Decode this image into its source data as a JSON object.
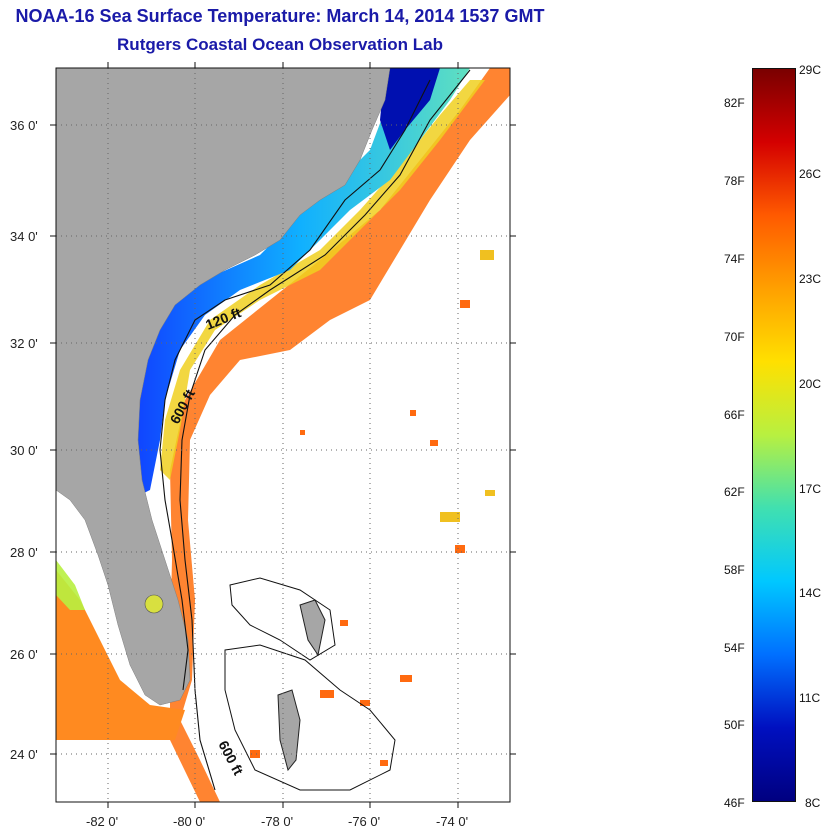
{
  "title": "NOAA-16 Sea Surface Temperature:  March 14, 2014 1537 GMT",
  "subtitle": "Rutgers Coastal Ocean Observation Lab",
  "map": {
    "lat_ticks": [
      "36 0'",
      "34 0'",
      "32 0'",
      "30 0'",
      "28 0'",
      "26 0'",
      "24 0'"
    ],
    "lon_ticks": [
      "-82 0'",
      "-80 0'",
      "-78 0'",
      "-76 0'",
      "-74 0'"
    ],
    "contour_labels": [
      "120 ft",
      "600 ft",
      "600 ft"
    ],
    "colors": {
      "land": "#a6a6a6",
      "ocean_nodata": "#ffffff",
      "grid": "#666666"
    }
  },
  "colorbar": {
    "fahrenheit": [
      "82F",
      "78F",
      "74F",
      "70F",
      "66F",
      "62F",
      "58F",
      "54F",
      "50F",
      "46F"
    ],
    "celsius": [
      "29C",
      "26C",
      "23C",
      "20C",
      "17C",
      "14C",
      "11C",
      "8C"
    ],
    "colors": [
      "#7a0000",
      "#d40000",
      "#ff5a00",
      "#ffa000",
      "#ffe000",
      "#b8f040",
      "#40e0b0",
      "#00c8ff",
      "#0070ff",
      "#0010c0",
      "#000080"
    ]
  }
}
